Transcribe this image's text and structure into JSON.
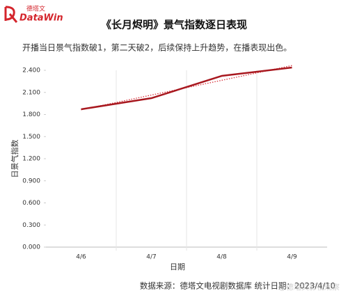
{
  "logo": {
    "name_cn": "德塔文",
    "name_en": "DataWin"
  },
  "chart_data": {
    "type": "line",
    "title": "《长月烬明》景气指数逐日表现",
    "subtitle": "开播当日景气指数破1，第二天破2，后续保持上升趋势，在播表现出色。",
    "x_label": "日期",
    "y_label": "日景气指数",
    "categories": [
      "4/6",
      "4/7",
      "4/8",
      "4/9"
    ],
    "series": [
      {
        "color": "#a8181f",
        "values": [
          1.871,
          2.022,
          2.324,
          2.438
        ]
      }
    ],
    "trendline": {
      "color": "#d8303a",
      "values": [
        1.864,
        2.064,
        2.264,
        2.465
      ]
    },
    "ylim": [
      0,
      2.4
    ],
    "yticks": [
      {
        "value": 0,
        "label": "0.000"
      },
      {
        "value": 0.3,
        "label": "0.300"
      },
      {
        "value": 0.6,
        "label": "0.600"
      },
      {
        "value": 0.9,
        "label": "0.900"
      },
      {
        "value": 1.2,
        "label": "1.200"
      },
      {
        "value": 1.5,
        "label": "1.500"
      },
      {
        "value": 1.8,
        "label": "1.800"
      },
      {
        "value": 2.1,
        "label": "2.100"
      },
      {
        "value": 2.4,
        "label": "2.400"
      }
    ],
    "source": "数据来源：德塔文电视剧数据库   统计日期：2023/4/10",
    "watermark": "@德塔文影视观察"
  }
}
